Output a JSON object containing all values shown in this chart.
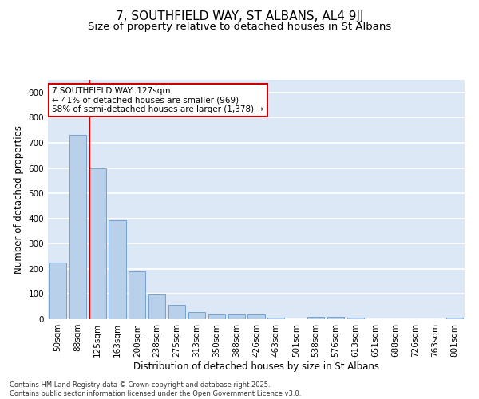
{
  "title": "7, SOUTHFIELD WAY, ST ALBANS, AL4 9JJ",
  "subtitle": "Size of property relative to detached houses in St Albans",
  "xlabel": "Distribution of detached houses by size in St Albans",
  "ylabel": "Number of detached properties",
  "categories": [
    "50sqm",
    "88sqm",
    "125sqm",
    "163sqm",
    "200sqm",
    "238sqm",
    "275sqm",
    "313sqm",
    "350sqm",
    "388sqm",
    "426sqm",
    "463sqm",
    "501sqm",
    "538sqm",
    "576sqm",
    "613sqm",
    "651sqm",
    "688sqm",
    "726sqm",
    "763sqm",
    "801sqm"
  ],
  "values": [
    225,
    730,
    600,
    393,
    190,
    97,
    58,
    28,
    20,
    18,
    18,
    5,
    0,
    10,
    10,
    5,
    0,
    0,
    0,
    0,
    7
  ],
  "bar_color": "#b8d0ea",
  "bar_edge_color": "#6699cc",
  "vline_color": "#cc0000",
  "vline_x_index": 2,
  "annotation_text": "7 SOUTHFIELD WAY: 127sqm\n← 41% of detached houses are smaller (969)\n58% of semi-detached houses are larger (1,378) →",
  "annotation_box_color": "#ffffff",
  "annotation_box_edge_color": "#cc0000",
  "ylim": [
    0,
    950
  ],
  "yticks": [
    0,
    100,
    200,
    300,
    400,
    500,
    600,
    700,
    800,
    900
  ],
  "title_fontsize": 11,
  "subtitle_fontsize": 9.5,
  "axis_label_fontsize": 8.5,
  "tick_fontsize": 7.5,
  "annotation_fontsize": 7.5,
  "footer_text": "Contains HM Land Registry data © Crown copyright and database right 2025.\nContains public sector information licensed under the Open Government Licence v3.0.",
  "background_color": "#dce8f5",
  "grid_color": "#ffffff",
  "fig_background": "#ffffff"
}
